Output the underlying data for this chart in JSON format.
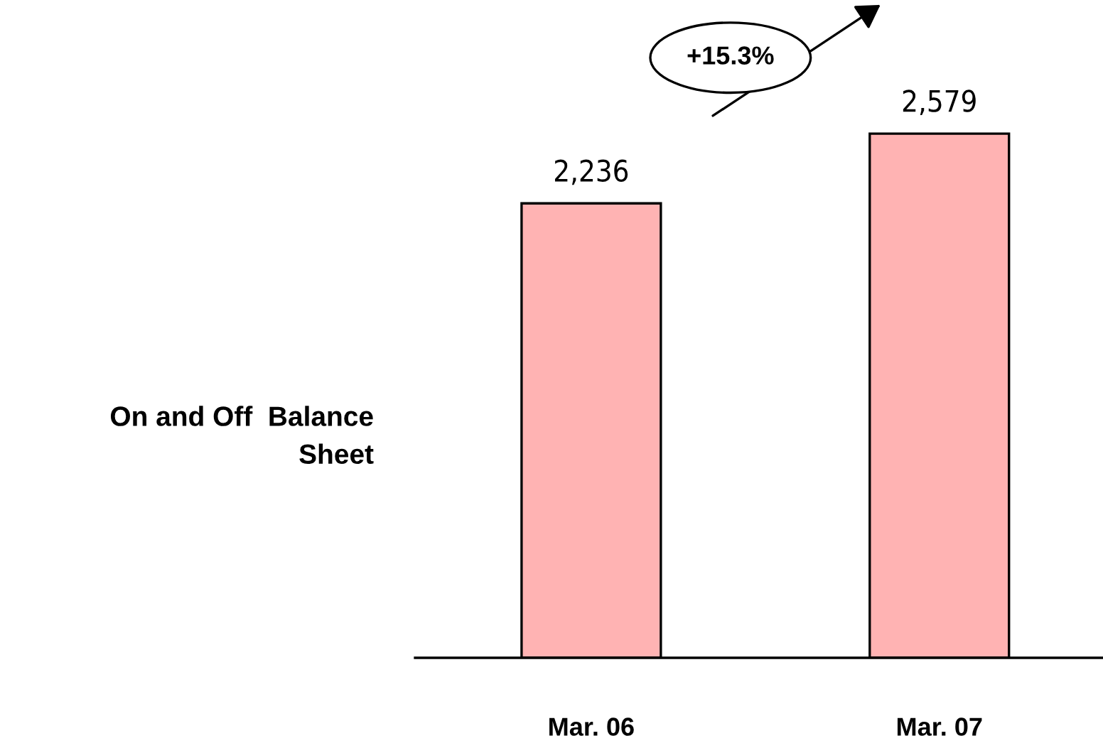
{
  "chart_data": {
    "type": "bar",
    "categories": [
      "Mar. 06",
      "Mar. 07"
    ],
    "values": [
      2236,
      2579
    ],
    "color": "#ffb3b3",
    "value_labels": [
      "2,236",
      "2,579"
    ],
    "ylabel": "On and Off  Balance\nSheet",
    "annotations": [
      "+15.3%"
    ],
    "grid": false,
    "legend": false
  }
}
